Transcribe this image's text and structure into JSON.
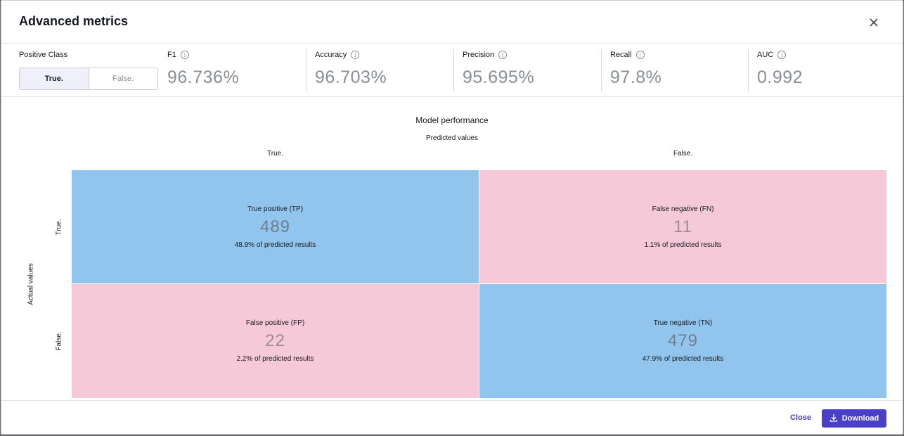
{
  "modal": {
    "title": "Advanced metrics"
  },
  "positive_class": {
    "label": "Positive Class",
    "options": [
      "True.",
      "False."
    ],
    "selected": "True."
  },
  "metrics": [
    {
      "label": "F1",
      "value": "96.736%"
    },
    {
      "label": "Accuracy",
      "value": "96.703%"
    },
    {
      "label": "Precision",
      "value": "95.695%"
    },
    {
      "label": "Recall",
      "value": "97.8%"
    },
    {
      "label": "AUC",
      "value": "0.992"
    }
  ],
  "matrix": {
    "title": "Model performance",
    "predicted_label": "Predicted values",
    "actual_label": "Actual values",
    "columns": [
      "True.",
      "False."
    ],
    "rows": [
      "True.",
      "False."
    ],
    "cells": [
      {
        "name": "True positive (TP)",
        "value": "489",
        "pct": "48.9% of predicted results",
        "color": "#92c5ed"
      },
      {
        "name": "False negative (FN)",
        "value": "11",
        "pct": "1.1% of predicted results",
        "color": "#f6c9d8"
      },
      {
        "name": "False positive (FP)",
        "value": "22",
        "pct": "2.2% of predicted results",
        "color": "#f6c9d8"
      },
      {
        "name": "True negative (TN)",
        "value": "479",
        "pct": "47.9% of predicted results",
        "color": "#92c5ed"
      }
    ]
  },
  "footer": {
    "close_label": "Close",
    "download_label": "Download"
  },
  "icons": {
    "close": "close-icon",
    "info": "info-icon",
    "download": "download-icon"
  },
  "colors": {
    "accent": "#4a3fc8"
  }
}
